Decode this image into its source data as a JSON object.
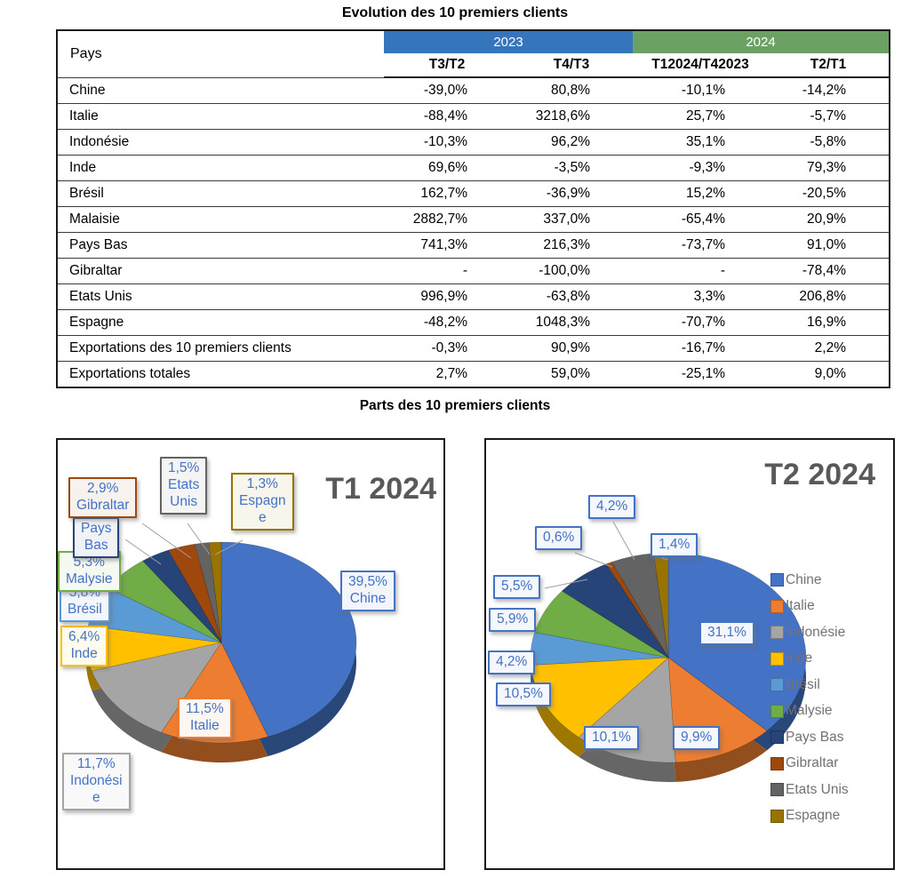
{
  "table_section": {
    "title": "Evolution des 10 premiers clients",
    "pays_header": "Pays",
    "year_groups": [
      {
        "label": "2023",
        "color": "#3575BC"
      },
      {
        "label": "2024",
        "color": "#6BA263"
      }
    ],
    "sub_headers": [
      "T3/T2",
      "T4/T3",
      "T12024/T42023",
      "T2/T1"
    ],
    "rows": [
      {
        "pays": "Chine",
        "values": [
          "-39,0%",
          "80,8%",
          "-10,1%",
          "-14,2%"
        ]
      },
      {
        "pays": "Italie",
        "values": [
          "-88,4%",
          "3218,6%",
          "25,7%",
          "-5,7%"
        ]
      },
      {
        "pays": "Indonésie",
        "values": [
          "-10,3%",
          "96,2%",
          "35,1%",
          "-5,8%"
        ]
      },
      {
        "pays": "Inde",
        "values": [
          "69,6%",
          "-3,5%",
          "-9,3%",
          "79,3%"
        ]
      },
      {
        "pays": "Brésil",
        "values": [
          "162,7%",
          "-36,9%",
          "15,2%",
          "-20,5%"
        ]
      },
      {
        "pays": "Malaisie",
        "values": [
          "2882,7%",
          "337,0%",
          "-65,4%",
          "20,9%"
        ]
      },
      {
        "pays": "Pays Bas",
        "values": [
          "741,3%",
          "216,3%",
          "-73,7%",
          "91,0%"
        ]
      },
      {
        "pays": "Gibraltar",
        "values": [
          "-",
          "-100,0%",
          "-",
          "-78,4%"
        ]
      },
      {
        "pays": "Etats Unis",
        "values": [
          "996,9%",
          "-63,8%",
          "3,3%",
          "206,8%"
        ]
      },
      {
        "pays": "Espagne",
        "values": [
          "-48,2%",
          "1048,3%",
          "-70,7%",
          "16,9%"
        ]
      },
      {
        "pays": "Exportations des 10 premiers clients",
        "values": [
          "-0,3%",
          "90,9%",
          "-16,7%",
          "2,2%"
        ]
      },
      {
        "pays": "Exportations totales",
        "values": [
          "2,7%",
          "59,0%",
          "-25,1%",
          "9,0%"
        ]
      }
    ]
  },
  "charts_section": {
    "title": "Parts des 10 premiers clients",
    "callout_text_color": "#4472C4",
    "callout_border_t2": "#4472C4",
    "title_color": "#595959",
    "legend_text_color": "#767171"
  },
  "chart_data": [
    {
      "type": "pie",
      "title": "T1 2024",
      "labels": [
        "Chine",
        "Italie",
        "Indonésie",
        "Inde",
        "Brésil",
        "Malysie",
        "Pays Bas",
        "Gibraltar",
        "Etats Unis",
        "Espagne"
      ],
      "values": [
        39.5,
        11.5,
        11.7,
        6.4,
        5.8,
        5.3,
        3.1,
        2.9,
        1.5,
        1.3
      ],
      "colors": [
        "#4472C4",
        "#ED7D31",
        "#A5A5A5",
        "#FFC000",
        "#5B9BD5",
        "#70AD47",
        "#264478",
        "#9E480E",
        "#636363",
        "#997300"
      ],
      "callouts": [
        [
          "39,5%",
          "Chine"
        ],
        [
          "11,5%",
          "Italie"
        ],
        [
          "11,7%",
          "Indonési",
          "e"
        ],
        [
          "6,4%",
          "Inde"
        ],
        [
          "5,8%",
          "Brésil"
        ],
        [
          "5,3%",
          "Malysie"
        ],
        [
          "Pays",
          "Bas"
        ],
        [
          "2,9%",
          "Gibraltar"
        ],
        [
          "1,5%",
          "Etats",
          "Unis"
        ],
        [
          "1,3%",
          "Espagn",
          "e"
        ]
      ],
      "legend": null
    },
    {
      "type": "pie",
      "title": "T2 2024",
      "labels": [
        "Chine",
        "Italie",
        "Indonésie",
        "Inde",
        "Brésil",
        "Malysie",
        "Pays Bas",
        "Gibraltar",
        "Etats Unis",
        "Espagne"
      ],
      "values": [
        31.1,
        9.9,
        10.1,
        10.5,
        4.2,
        5.9,
        5.5,
        0.6,
        4.2,
        1.4
      ],
      "colors": [
        "#4472C4",
        "#ED7D31",
        "#A5A5A5",
        "#FFC000",
        "#5B9BD5",
        "#70AD47",
        "#264478",
        "#9E480E",
        "#636363",
        "#997300"
      ],
      "callouts": [
        [
          "31,1%"
        ],
        [
          "9,9%"
        ],
        [
          "10,1%"
        ],
        [
          "10,5%"
        ],
        [
          "4,2%"
        ],
        [
          "5,9%"
        ],
        [
          "5,5%"
        ],
        [
          "0,6%"
        ],
        [
          "4,2%"
        ],
        [
          "1,4%"
        ]
      ],
      "legend": [
        "Chine",
        "Italie",
        "Indonésie",
        "Inde",
        "Brésil",
        "Malysie",
        "Pays Bas",
        "Gibraltar",
        "Etats Unis",
        "Espagne"
      ]
    }
  ]
}
